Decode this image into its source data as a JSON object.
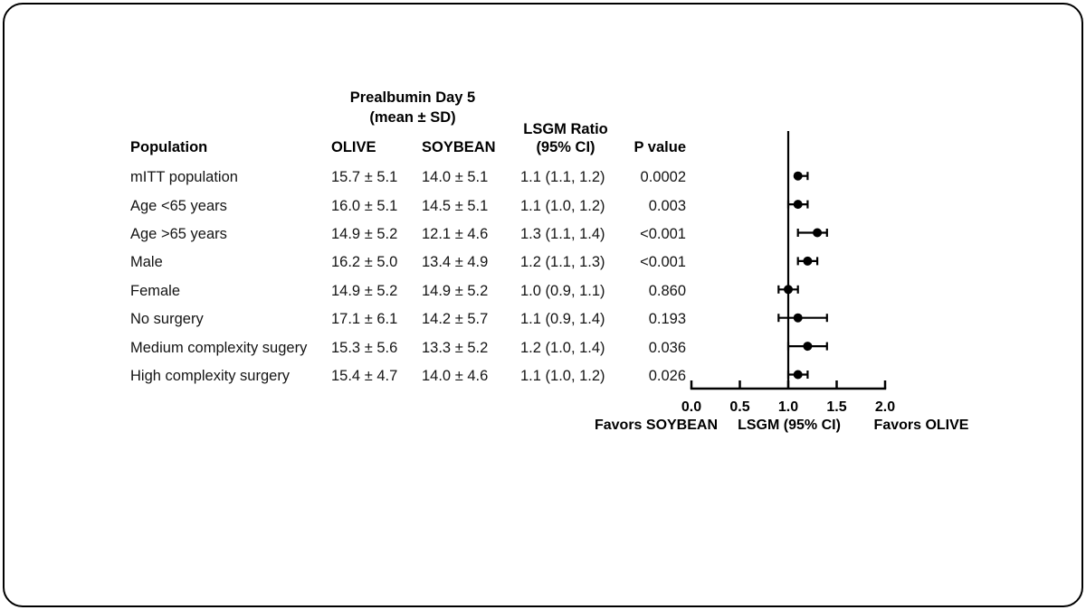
{
  "chart_data": {
    "type": "forest",
    "title_line1": "Prealbumin Day 5",
    "title_line2": "(mean ± SD)",
    "columns": {
      "population": "Population",
      "olive": "OLIVE",
      "soybean": "SOYBEAN",
      "lsgm_line1": "LSGM Ratio",
      "lsgm_line2": "(95% CI)",
      "p_value": "P value"
    },
    "rows": [
      {
        "population": "mITT population",
        "olive": "15.7 ± 5.1",
        "soybean": "14.0 ± 5.1",
        "lsgm_text": "1.1 (1.1, 1.2)",
        "ratio": 1.1,
        "ci_low": 1.1,
        "ci_high": 1.2,
        "p_value": "0.0002"
      },
      {
        "population": "Age <65 years",
        "olive": "16.0 ± 5.1",
        "soybean": "14.5 ± 5.1",
        "lsgm_text": "1.1 (1.0, 1.2)",
        "ratio": 1.1,
        "ci_low": 1.0,
        "ci_high": 1.2,
        "p_value": "0.003"
      },
      {
        "population": "Age >65 years",
        "olive": "14.9 ± 5.2",
        "soybean": "12.1 ± 4.6",
        "lsgm_text": "1.3 (1.1, 1.4)",
        "ratio": 1.3,
        "ci_low": 1.1,
        "ci_high": 1.4,
        "p_value": "<0.001"
      },
      {
        "population": "Male",
        "olive": "16.2 ± 5.0",
        "soybean": "13.4 ± 4.9",
        "lsgm_text": "1.2 (1.1, 1.3)",
        "ratio": 1.2,
        "ci_low": 1.1,
        "ci_high": 1.3,
        "p_value": "<0.001"
      },
      {
        "population": "Female",
        "olive": "14.9 ± 5.2",
        "soybean": "14.9 ± 5.2",
        "lsgm_text": "1.0 (0.9, 1.1)",
        "ratio": 1.0,
        "ci_low": 0.9,
        "ci_high": 1.1,
        "p_value": "0.860"
      },
      {
        "population": "No surgery",
        "olive": "17.1 ± 6.1",
        "soybean": "14.2 ± 5.7",
        "lsgm_text": "1.1 (0.9, 1.4)",
        "ratio": 1.1,
        "ci_low": 0.9,
        "ci_high": 1.4,
        "p_value": "0.193"
      },
      {
        "population": "Medium complexity sugery",
        "olive": "15.3 ± 5.6",
        "soybean": "13.3 ± 5.2",
        "lsgm_text": "1.2 (1.0, 1.4)",
        "ratio": 1.2,
        "ci_low": 1.0,
        "ci_high": 1.4,
        "p_value": "0.036"
      },
      {
        "population": "High complexity surgery",
        "olive": "15.4 ± 4.7",
        "soybean": "14.0 ± 4.6",
        "lsgm_text": "1.1 (1.0, 1.2)",
        "ratio": 1.1,
        "ci_low": 1.0,
        "ci_high": 1.2,
        "p_value": "0.026"
      }
    ],
    "axis": {
      "xlabel": "LSGM (95% CI)",
      "tick_labels": [
        "0.0",
        "0.5",
        "1.0",
        "1.5",
        "2.0"
      ],
      "tick_values": [
        0,
        0.5,
        1,
        1.5,
        2
      ],
      "xlim": [
        0,
        2
      ],
      "ref_line": 1.0,
      "favors_left": "Favors SOYBEAN",
      "favors_right": "Favors OLIVE"
    },
    "colors": {
      "foreground": "#000000",
      "background": "#ffffff"
    }
  }
}
